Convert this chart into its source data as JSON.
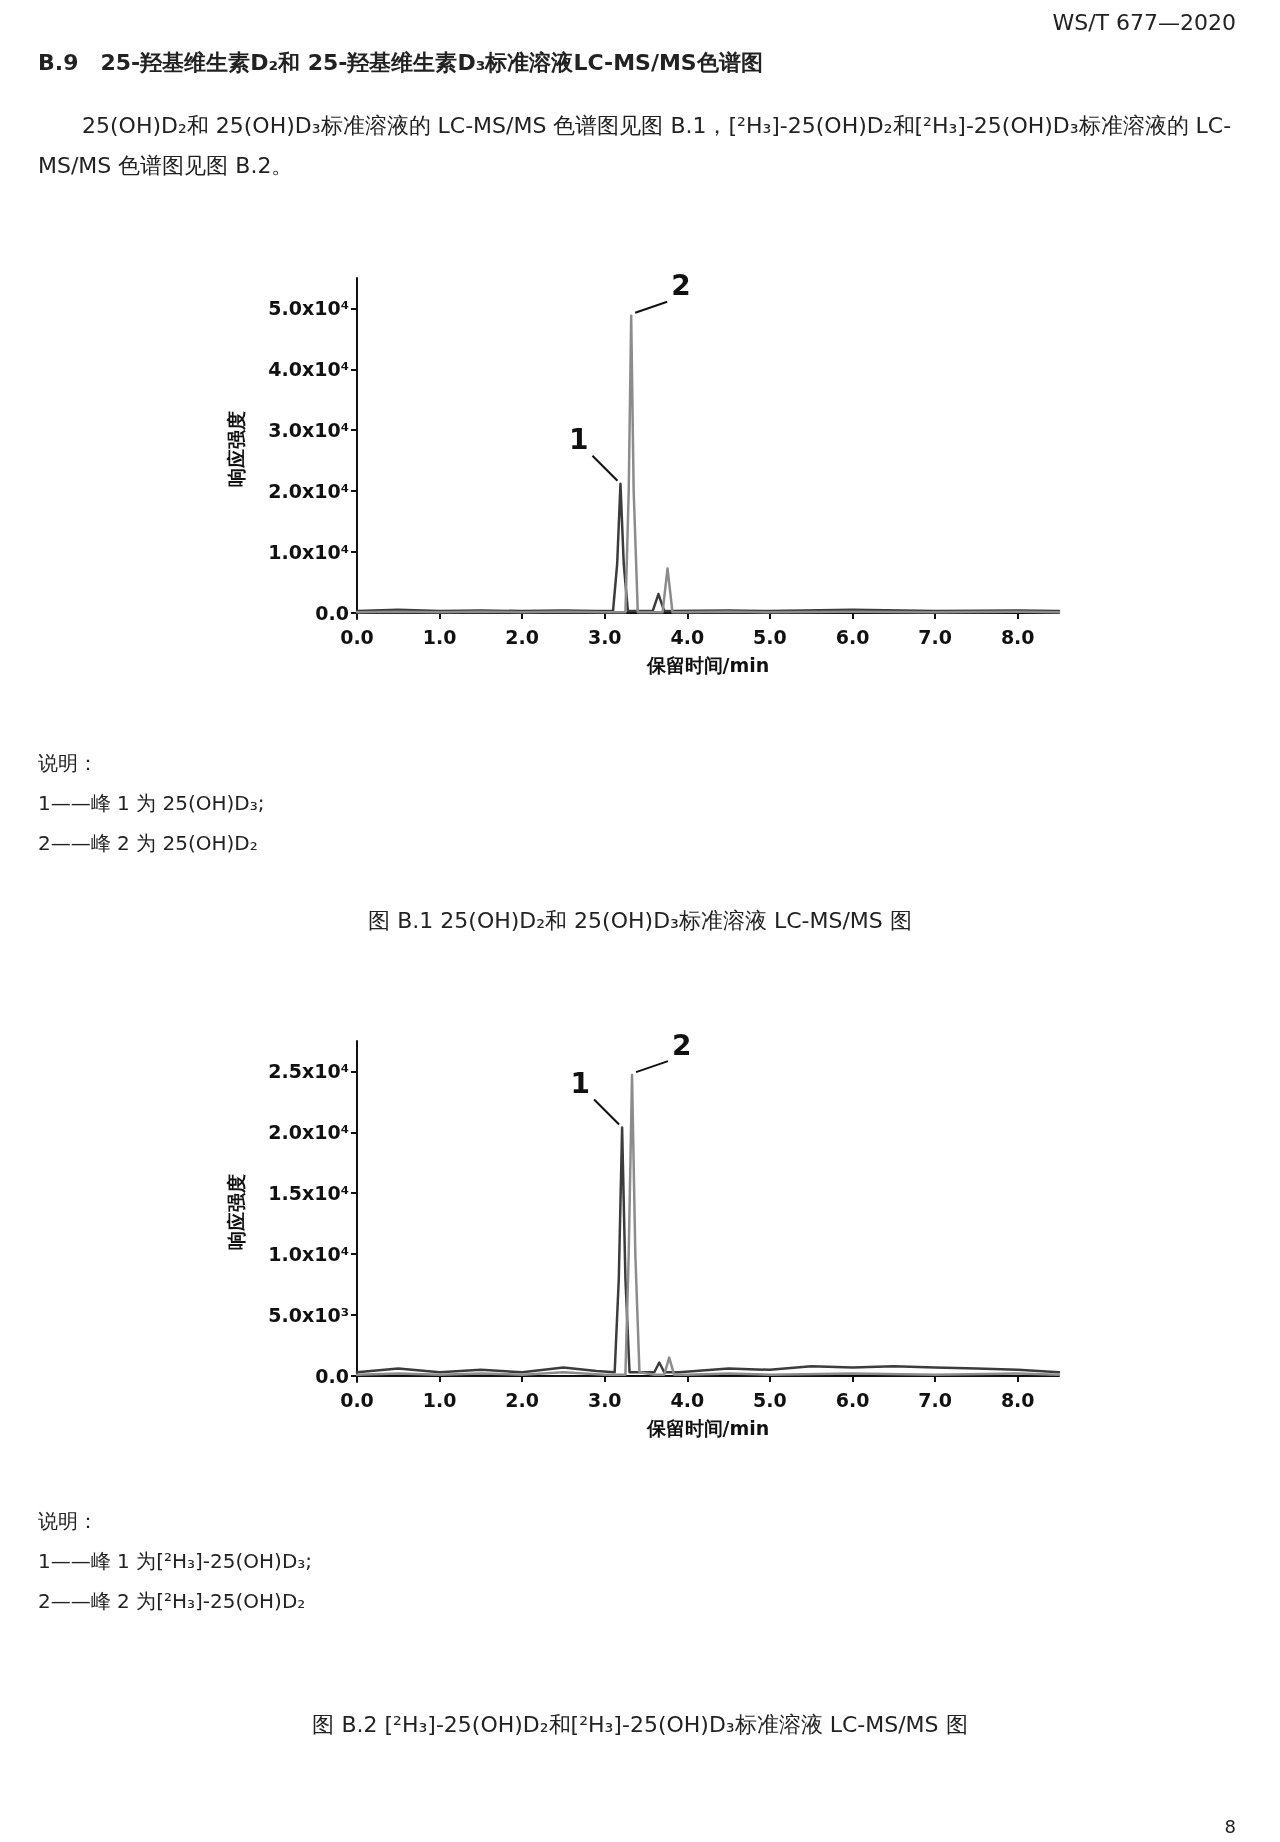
{
  "chart_data": [
    {
      "type": "line",
      "title": "图 B.1 25(OH)D₂和 25(OH)D₃标准溶液 LC-MS/MS 图",
      "xlabel": "保留时间/min",
      "ylabel": "响应强度",
      "annotations": [
        "WS/T 677—2020",
        "B.9　25-羟基维生素D₂和 25-羟基维生素D₃标准溶液LC-MS/MS色谱图",
        "25(OH)D₂和 25(OH)D₃标准溶液的 LC-MS/MS 色谱图见图 B.1，[²H₃]-25(OH)D₂和[²H₃]-25(OH)D₃标准溶液的 LC-MS/MS 色谱图见图 B.2。",
        "说明：",
        "1——峰 1 为 25(OH)D₃;",
        "2——峰 2 为 25(OH)D₂",
        {
          "text": "1",
          "x": 3.19,
          "y": 21200
        },
        {
          "text": "2",
          "x": 3.32,
          "y": 48800
        }
      ],
      "series": [
        {
          "color": "#3c3c3c",
          "x": [
            0,
            0.5,
            1,
            1.5,
            2,
            2.5,
            2.9,
            3.1,
            3.15,
            3.19,
            3.23,
            3.28,
            3.4,
            3.58,
            3.65,
            3.72,
            3.8,
            4.5,
            5,
            6,
            7,
            8,
            8.5
          ],
          "values": [
            300,
            500,
            300,
            400,
            300,
            400,
            300,
            300,
            8000,
            21200,
            8000,
            300,
            300,
            300,
            3100,
            300,
            300,
            400,
            300,
            500,
            300,
            400,
            300
          ]
        },
        {
          "color": "#8c8c8c",
          "x": [
            0,
            0.5,
            1,
            1.5,
            2,
            2.5,
            3,
            3.25,
            3.29,
            3.32,
            3.35,
            3.4,
            3.6,
            3.7,
            3.76,
            3.82,
            3.9,
            4.5,
            5,
            6,
            7,
            8,
            8.5
          ],
          "values": [
            100,
            200,
            100,
            200,
            100,
            200,
            100,
            100,
            20000,
            48800,
            20000,
            100,
            100,
            100,
            7300,
            100,
            100,
            200,
            100,
            200,
            100,
            200,
            100
          ]
        }
      ],
      "xlim": [
        0,
        8.5
      ],
      "xticks": [
        {
          "value": 0,
          "label": "0.0"
        },
        {
          "value": 1,
          "label": "1.0"
        },
        {
          "value": 2,
          "label": "2.0"
        },
        {
          "value": 3,
          "label": "3.0"
        },
        {
          "value": 4,
          "label": "4.0"
        },
        {
          "value": 5,
          "label": "5.0"
        },
        {
          "value": 6,
          "label": "6.0"
        },
        {
          "value": 7,
          "label": "7.0"
        },
        {
          "value": 8,
          "label": "8.0"
        }
      ],
      "ylim": [
        -1000,
        55000
      ],
      "yticks": [
        {
          "value": 0,
          "label": "0.0"
        },
        {
          "value": 10000,
          "label": "1.0x10⁴"
        },
        {
          "value": 20000,
          "label": "2.0x10⁴"
        },
        {
          "value": 30000,
          "label": "3.0x10⁴"
        },
        {
          "value": 40000,
          "label": "4.0x10⁴"
        },
        {
          "value": 50000,
          "label": "5.0x10⁴"
        }
      ],
      "grid": false,
      "marker": "none",
      "line_style": "solid"
    },
    {
      "type": "line",
      "title": "图 B.2 [²H₃]-25(OH)D₂和[²H₃]-25(OH)D₃标准溶液 LC-MS/MS 图",
      "xlabel": "保留时间/min",
      "ylabel": "响应强度",
      "annotations": [
        "说明：",
        "1——峰 1 为[²H₃]-25(OH)D₃;",
        "2——峰 2 为[²H₃]-25(OH)D₂",
        "8",
        {
          "text": "1",
          "x": 3.21,
          "y": 20400
        },
        {
          "text": "2",
          "x": 3.33,
          "y": 24700
        }
      ],
      "series": [
        {
          "color": "#3c3c3c",
          "x": [
            0,
            0.5,
            1,
            1.5,
            2,
            2.5,
            2.9,
            3.12,
            3.17,
            3.21,
            3.25,
            3.3,
            3.5,
            3.6,
            3.66,
            3.72,
            3.9,
            4.5,
            5,
            5.5,
            6,
            6.5,
            7,
            7.5,
            8,
            8.5
          ],
          "values": [
            300,
            600,
            300,
            500,
            300,
            700,
            400,
            300,
            8000,
            20400,
            8000,
            300,
            300,
            300,
            1100,
            300,
            300,
            600,
            500,
            800,
            700,
            800,
            700,
            600,
            500,
            300
          ]
        },
        {
          "color": "#8c8c8c",
          "x": [
            0,
            0.5,
            1,
            1.5,
            2,
            2.5,
            3,
            3.25,
            3.29,
            3.33,
            3.37,
            3.42,
            3.6,
            3.72,
            3.78,
            3.84,
            4,
            4.5,
            5,
            6,
            7,
            8,
            8.5
          ],
          "values": [
            100,
            200,
            100,
            200,
            100,
            300,
            100,
            100,
            10000,
            24700,
            10000,
            300,
            100,
            100,
            1500,
            100,
            100,
            200,
            100,
            200,
            100,
            200,
            100
          ]
        }
      ],
      "xlim": [
        0,
        8.5
      ],
      "xticks": [
        {
          "value": 0,
          "label": "0.0"
        },
        {
          "value": 1,
          "label": "1.0"
        },
        {
          "value": 2,
          "label": "2.0"
        },
        {
          "value": 3,
          "label": "3.0"
        },
        {
          "value": 4,
          "label": "4.0"
        },
        {
          "value": 5,
          "label": "5.0"
        },
        {
          "value": 6,
          "label": "6.0"
        },
        {
          "value": 7,
          "label": "7.0"
        },
        {
          "value": 8,
          "label": "8.0"
        }
      ],
      "ylim": [
        -500,
        27500
      ],
      "yticks": [
        {
          "value": 0,
          "label": "0.0"
        },
        {
          "value": 5000,
          "label": "5.0x10³"
        },
        {
          "value": 10000,
          "label": "1.0x10⁴"
        },
        {
          "value": 15000,
          "label": "1.5x10⁴"
        },
        {
          "value": 20000,
          "label": "2.0x10⁴"
        },
        {
          "value": 25000,
          "label": "2.5x10⁴"
        }
      ],
      "grid": false,
      "marker": "none",
      "line_style": "solid"
    }
  ]
}
